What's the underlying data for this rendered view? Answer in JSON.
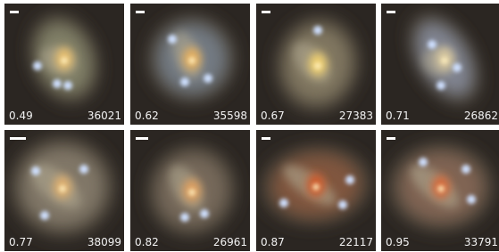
{
  "panels": [
    {
      "redshift": "0.49",
      "id": "36021"
    },
    {
      "redshift": "0.62",
      "id": "35598"
    },
    {
      "redshift": "0.67",
      "id": "27383"
    },
    {
      "redshift": "0.71",
      "id": "26862"
    },
    {
      "redshift": "0.77",
      "id": "38099"
    },
    {
      "redshift": "0.82",
      "id": "26961"
    },
    {
      "redshift": "0.87",
      "id": "22117"
    },
    {
      "redshift": "0.95",
      "id": "33791"
    }
  ]
}
